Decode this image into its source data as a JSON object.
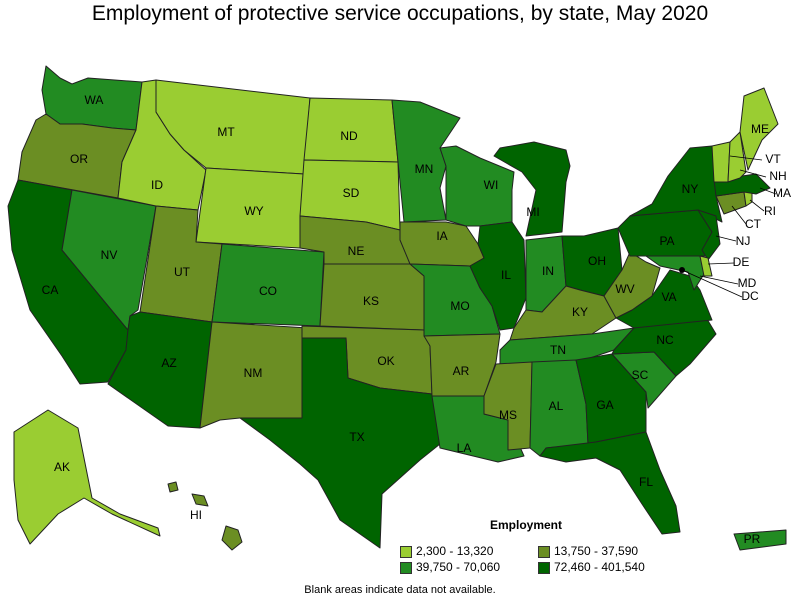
{
  "title": "Employment of protective service occupations, by state, May 2020",
  "footnote": "Blank areas indicate data not available.",
  "legend": {
    "title": "Employment",
    "bins": [
      {
        "label": "2,300 - 13,320",
        "color": "#9acd32"
      },
      {
        "label": "13,750 - 37,590",
        "color": "#6b8e23"
      },
      {
        "label": "39,750 - 70,060",
        "color": "#228b22"
      },
      {
        "label": "72,460 - 401,540",
        "color": "#006400"
      }
    ]
  },
  "states": {
    "WA": {
      "label": "WA",
      "bin": 2
    },
    "OR": {
      "label": "OR",
      "bin": 1
    },
    "CA": {
      "label": "CA",
      "bin": 3
    },
    "NV": {
      "label": "NV",
      "bin": 2
    },
    "ID": {
      "label": "ID",
      "bin": 0
    },
    "MT": {
      "label": "MT",
      "bin": 0
    },
    "WY": {
      "label": "WY",
      "bin": 0
    },
    "UT": {
      "label": "UT",
      "bin": 1
    },
    "AZ": {
      "label": "AZ",
      "bin": 3
    },
    "CO": {
      "label": "CO",
      "bin": 2
    },
    "NM": {
      "label": "NM",
      "bin": 1
    },
    "ND": {
      "label": "ND",
      "bin": 0
    },
    "SD": {
      "label": "SD",
      "bin": 0
    },
    "NE": {
      "label": "NE",
      "bin": 1
    },
    "KS": {
      "label": "KS",
      "bin": 1
    },
    "OK": {
      "label": "OK",
      "bin": 1
    },
    "TX": {
      "label": "TX",
      "bin": 3
    },
    "MN": {
      "label": "MN",
      "bin": 2
    },
    "IA": {
      "label": "IA",
      "bin": 1
    },
    "MO": {
      "label": "MO",
      "bin": 2
    },
    "AR": {
      "label": "AR",
      "bin": 1
    },
    "LA": {
      "label": "LA",
      "bin": 2
    },
    "WI": {
      "label": "WI",
      "bin": 2
    },
    "IL": {
      "label": "IL",
      "bin": 3
    },
    "MI": {
      "label": "MI",
      "bin": 3
    },
    "IN": {
      "label": "IN",
      "bin": 2
    },
    "OH": {
      "label": "OH",
      "bin": 3
    },
    "KY": {
      "label": "KY",
      "bin": 1
    },
    "TN": {
      "label": "TN",
      "bin": 2
    },
    "MS": {
      "label": "MS",
      "bin": 1
    },
    "AL": {
      "label": "AL",
      "bin": 2
    },
    "GA": {
      "label": "GA",
      "bin": 3
    },
    "FL": {
      "label": "FL",
      "bin": 3
    },
    "SC": {
      "label": "SC",
      "bin": 2
    },
    "NC": {
      "label": "NC",
      "bin": 3
    },
    "VA": {
      "label": "VA",
      "bin": 3
    },
    "WV": {
      "label": "WV",
      "bin": 1
    },
    "PA": {
      "label": "PA",
      "bin": 3
    },
    "NY": {
      "label": "NY",
      "bin": 3
    },
    "ME": {
      "label": "ME",
      "bin": 0
    },
    "VT": {
      "label": "VT",
      "bin": 0
    },
    "NH": {
      "label": "NH",
      "bin": 0
    },
    "MA": {
      "label": "MA",
      "bin": 3
    },
    "RI": {
      "label": "RI",
      "bin": 0
    },
    "CT": {
      "label": "CT",
      "bin": 1
    },
    "NJ": {
      "label": "NJ",
      "bin": 3
    },
    "DE": {
      "label": "DE",
      "bin": 0
    },
    "MD": {
      "label": "MD",
      "bin": 2
    },
    "DC": {
      "label": "DC",
      "bin": 0
    },
    "AK": {
      "label": "AK",
      "bin": 0
    },
    "HI": {
      "label": "HI",
      "bin": 1
    },
    "PR": {
      "label": "PR",
      "bin": 2
    }
  }
}
